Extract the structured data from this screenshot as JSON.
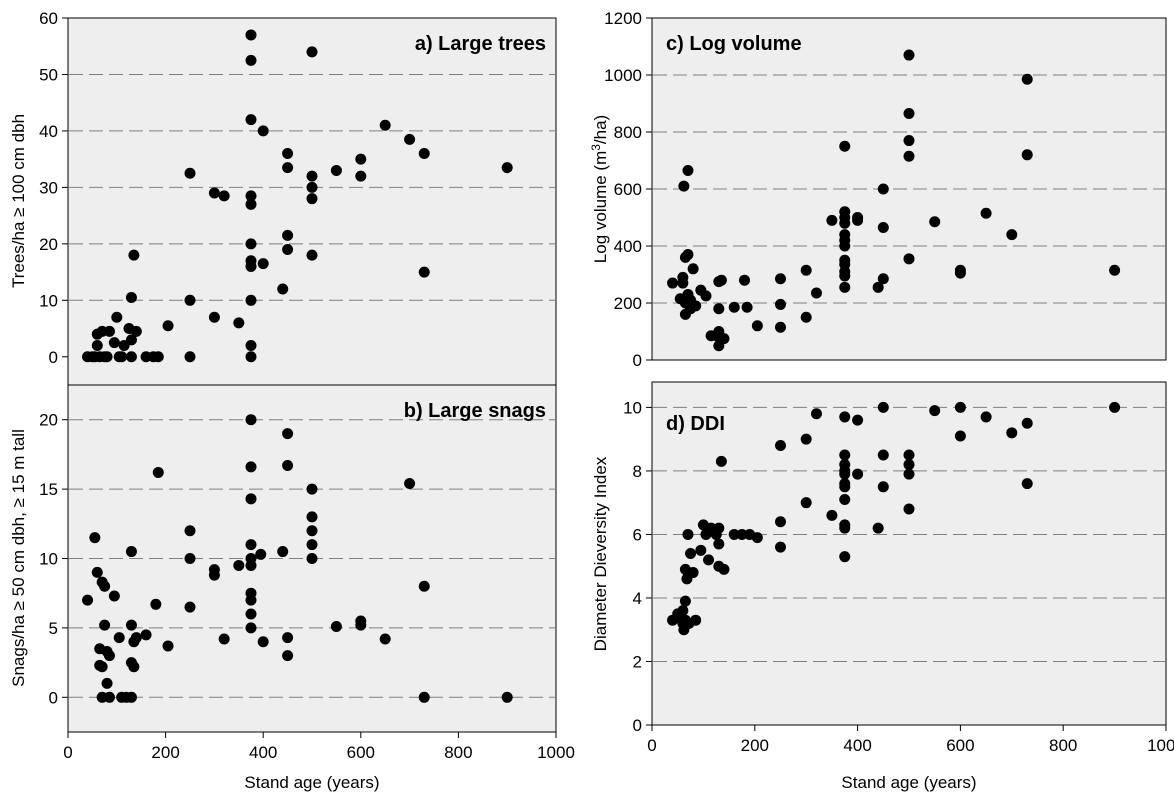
{
  "colors": {
    "panel_bg": "#eeeeee",
    "marker": "#000000",
    "gridline": "#808080"
  },
  "chart_data": [
    {
      "id": "a",
      "type": "scatter",
      "title": "a) Large trees",
      "xlabel": "",
      "ylabel": "Trees/ha ≥ 100 cm dbh",
      "xlim": [
        0,
        1000
      ],
      "ylim": [
        -5,
        60
      ],
      "yticks": [
        0,
        10,
        20,
        30,
        40,
        50,
        60
      ],
      "xticks": [],
      "gridlines_y": [
        10,
        20,
        30,
        40,
        50
      ],
      "points": [
        [
          40,
          0
        ],
        [
          50,
          0
        ],
        [
          55,
          0
        ],
        [
          60,
          2
        ],
        [
          60,
          4
        ],
        [
          65,
          0
        ],
        [
          70,
          4.5
        ],
        [
          75,
          0
        ],
        [
          80,
          0
        ],
        [
          85,
          4.5
        ],
        [
          95,
          2.5
        ],
        [
          100,
          7
        ],
        [
          105,
          0
        ],
        [
          110,
          0
        ],
        [
          115,
          2
        ],
        [
          125,
          5
        ],
        [
          130,
          0
        ],
        [
          130,
          10.5
        ],
        [
          130,
          3
        ],
        [
          135,
          18
        ],
        [
          140,
          4.5
        ],
        [
          160,
          0
        ],
        [
          175,
          0
        ],
        [
          185,
          0
        ],
        [
          205,
          5.5
        ],
        [
          250,
          32.5
        ],
        [
          250,
          10
        ],
        [
          250,
          0
        ],
        [
          300,
          29
        ],
        [
          300,
          7
        ],
        [
          320,
          28.5
        ],
        [
          350,
          6
        ],
        [
          375,
          57
        ],
        [
          375,
          52.5
        ],
        [
          375,
          42
        ],
        [
          375,
          28.5
        ],
        [
          375,
          27
        ],
        [
          375,
          20
        ],
        [
          375,
          17
        ],
        [
          375,
          16
        ],
        [
          375,
          10
        ],
        [
          375,
          2
        ],
        [
          375,
          0
        ],
        [
          400,
          40
        ],
        [
          400,
          16.5
        ],
        [
          440,
          12
        ],
        [
          450,
          36
        ],
        [
          450,
          33.5
        ],
        [
          450,
          21.5
        ],
        [
          450,
          19
        ],
        [
          500,
          54
        ],
        [
          500,
          32
        ],
        [
          500,
          30
        ],
        [
          500,
          28
        ],
        [
          500,
          18
        ],
        [
          550,
          33
        ],
        [
          600,
          35
        ],
        [
          600,
          32
        ],
        [
          650,
          41
        ],
        [
          700,
          38.5
        ],
        [
          730,
          36
        ],
        [
          730,
          15
        ],
        [
          900,
          33.5
        ]
      ]
    },
    {
      "id": "b",
      "type": "scatter",
      "title": "b) Large snags",
      "xlabel": "Stand age (years)",
      "ylabel": "Snags/ha ≥ 50 cm dbh, ≥ 15 m tall",
      "xlim": [
        0,
        1000
      ],
      "ylim": [
        -2.5,
        22.5
      ],
      "yticks": [
        0,
        5,
        10,
        15,
        20
      ],
      "xticks": [
        0,
        200,
        400,
        600,
        800,
        1000
      ],
      "gridlines_y": [
        0,
        5,
        10,
        15,
        20
      ],
      "points": [
        [
          40,
          7
        ],
        [
          55,
          11.5
        ],
        [
          60,
          9
        ],
        [
          65,
          3.5
        ],
        [
          65,
          2.3
        ],
        [
          70,
          8.3
        ],
        [
          70,
          2.2
        ],
        [
          70,
          0
        ],
        [
          75,
          8
        ],
        [
          75,
          5.2
        ],
        [
          80,
          3.3
        ],
        [
          80,
          1
        ],
        [
          85,
          3
        ],
        [
          85,
          0
        ],
        [
          95,
          7.3
        ],
        [
          105,
          4.3
        ],
        [
          110,
          0
        ],
        [
          120,
          0
        ],
        [
          130,
          10.5
        ],
        [
          130,
          5.2
        ],
        [
          130,
          2.5
        ],
        [
          130,
          0
        ],
        [
          135,
          4
        ],
        [
          135,
          2.2
        ],
        [
          140,
          4.3
        ],
        [
          160,
          4.5
        ],
        [
          180,
          6.7
        ],
        [
          185,
          16.2
        ],
        [
          205,
          3.7
        ],
        [
          250,
          12
        ],
        [
          250,
          10
        ],
        [
          250,
          6.5
        ],
        [
          300,
          9.2
        ],
        [
          300,
          8.8
        ],
        [
          320,
          4.2
        ],
        [
          350,
          9.5
        ],
        [
          375,
          20
        ],
        [
          375,
          16.6
        ],
        [
          375,
          14.3
        ],
        [
          375,
          11
        ],
        [
          375,
          10
        ],
        [
          375,
          9.5
        ],
        [
          375,
          7.5
        ],
        [
          375,
          7
        ],
        [
          375,
          6
        ],
        [
          375,
          5
        ],
        [
          395,
          10.3
        ],
        [
          400,
          4
        ],
        [
          440,
          10.5
        ],
        [
          450,
          19
        ],
        [
          450,
          16.7
        ],
        [
          450,
          4.3
        ],
        [
          450,
          3
        ],
        [
          500,
          15
        ],
        [
          500,
          13
        ],
        [
          500,
          12
        ],
        [
          500,
          11
        ],
        [
          500,
          10
        ],
        [
          550,
          5.1
        ],
        [
          600,
          5.5
        ],
        [
          600,
          5.2
        ],
        [
          650,
          4.2
        ],
        [
          700,
          15.4
        ],
        [
          730,
          8
        ],
        [
          730,
          0
        ],
        [
          900,
          0
        ]
      ]
    },
    {
      "id": "c",
      "type": "scatter",
      "title": "c) Log volume",
      "xlabel": "",
      "ylabel_main": "Log volume (m",
      "ylabel_sup": "3",
      "ylabel_end": "/ha)",
      "xlim": [
        0,
        1000
      ],
      "ylim": [
        0,
        1200
      ],
      "yticks": [
        0,
        200,
        400,
        600,
        800,
        1000,
        1200
      ],
      "xticks": [],
      "gridlines_y": [
        200,
        400,
        600,
        800,
        1000
      ],
      "points": [
        [
          40,
          270
        ],
        [
          55,
          215
        ],
        [
          60,
          290
        ],
        [
          60,
          270
        ],
        [
          62,
          610
        ],
        [
          65,
          360
        ],
        [
          65,
          200
        ],
        [
          65,
          160
        ],
        [
          70,
          665
        ],
        [
          70,
          370
        ],
        [
          70,
          230
        ],
        [
          75,
          210
        ],
        [
          75,
          180
        ],
        [
          80,
          320
        ],
        [
          85,
          190
        ],
        [
          95,
          245
        ],
        [
          105,
          225
        ],
        [
          115,
          85
        ],
        [
          125,
          85
        ],
        [
          130,
          100
        ],
        [
          130,
          50
        ],
        [
          130,
          275
        ],
        [
          130,
          180
        ],
        [
          135,
          280
        ],
        [
          140,
          75
        ],
        [
          160,
          185
        ],
        [
          180,
          280
        ],
        [
          185,
          185
        ],
        [
          205,
          120
        ],
        [
          250,
          285
        ],
        [
          250,
          195
        ],
        [
          250,
          115
        ],
        [
          300,
          315
        ],
        [
          300,
          150
        ],
        [
          320,
          235
        ],
        [
          350,
          490
        ],
        [
          375,
          750
        ],
        [
          375,
          520
        ],
        [
          375,
          500
        ],
        [
          375,
          480
        ],
        [
          375,
          440
        ],
        [
          375,
          420
        ],
        [
          375,
          400
        ],
        [
          375,
          350
        ],
        [
          375,
          335
        ],
        [
          375,
          310
        ],
        [
          375,
          295
        ],
        [
          375,
          255
        ],
        [
          400,
          500
        ],
        [
          400,
          490
        ],
        [
          440,
          255
        ],
        [
          450,
          600
        ],
        [
          450,
          465
        ],
        [
          450,
          285
        ],
        [
          500,
          1070
        ],
        [
          500,
          865
        ],
        [
          500,
          770
        ],
        [
          500,
          715
        ],
        [
          500,
          355
        ],
        [
          550,
          485
        ],
        [
          600,
          315
        ],
        [
          600,
          305
        ],
        [
          650,
          515
        ],
        [
          700,
          440
        ],
        [
          730,
          985
        ],
        [
          730,
          720
        ],
        [
          900,
          315
        ]
      ]
    },
    {
      "id": "d",
      "type": "scatter",
      "title": "d) DDI",
      "xlabel": "Stand age (years)",
      "ylabel": "Diameter Dieversity Index",
      "xlim": [
        0,
        1000
      ],
      "ylim": [
        0,
        10.8
      ],
      "yticks": [
        0,
        2,
        4,
        6,
        8,
        10
      ],
      "xticks": [
        0,
        200,
        400,
        600,
        800,
        1000
      ],
      "gridlines_y": [
        2,
        4,
        6,
        8,
        10
      ],
      "points": [
        [
          40,
          3.3
        ],
        [
          50,
          3.5
        ],
        [
          55,
          3.4
        ],
        [
          60,
          3.6
        ],
        [
          60,
          3.2
        ],
        [
          62,
          3
        ],
        [
          65,
          4.9
        ],
        [
          65,
          3.9
        ],
        [
          65,
          3.3
        ],
        [
          68,
          4.6
        ],
        [
          70,
          6
        ],
        [
          70,
          4.8
        ],
        [
          72,
          3.2
        ],
        [
          75,
          5.4
        ],
        [
          80,
          4.8
        ],
        [
          85,
          3.3
        ],
        [
          95,
          5.5
        ],
        [
          100,
          6.3
        ],
        [
          105,
          6
        ],
        [
          110,
          5.2
        ],
        [
          115,
          6.2
        ],
        [
          125,
          6
        ],
        [
          130,
          6.2
        ],
        [
          130,
          5.7
        ],
        [
          130,
          5
        ],
        [
          135,
          8.3
        ],
        [
          140,
          4.9
        ],
        [
          160,
          6
        ],
        [
          175,
          6
        ],
        [
          190,
          6
        ],
        [
          205,
          5.9
        ],
        [
          250,
          8.8
        ],
        [
          250,
          6.4
        ],
        [
          250,
          5.6
        ],
        [
          300,
          9
        ],
        [
          300,
          7
        ],
        [
          320,
          9.8
        ],
        [
          350,
          6.6
        ],
        [
          375,
          9.7
        ],
        [
          375,
          8.5
        ],
        [
          375,
          8.2
        ],
        [
          375,
          8
        ],
        [
          375,
          7.9
        ],
        [
          375,
          7.6
        ],
        [
          375,
          7.5
        ],
        [
          375,
          7.1
        ],
        [
          375,
          6.3
        ],
        [
          375,
          6.2
        ],
        [
          375,
          5.3
        ],
        [
          400,
          9.6
        ],
        [
          400,
          7.9
        ],
        [
          440,
          6.2
        ],
        [
          450,
          10
        ],
        [
          450,
          8.5
        ],
        [
          450,
          7.5
        ],
        [
          500,
          8.5
        ],
        [
          500,
          8.2
        ],
        [
          500,
          7.9
        ],
        [
          500,
          6.8
        ],
        [
          550,
          9.9
        ],
        [
          600,
          10
        ],
        [
          600,
          9.1
        ],
        [
          650,
          9.7
        ],
        [
          700,
          9.2
        ],
        [
          730,
          9.5
        ],
        [
          730,
          7.6
        ],
        [
          900,
          10
        ]
      ]
    }
  ]
}
